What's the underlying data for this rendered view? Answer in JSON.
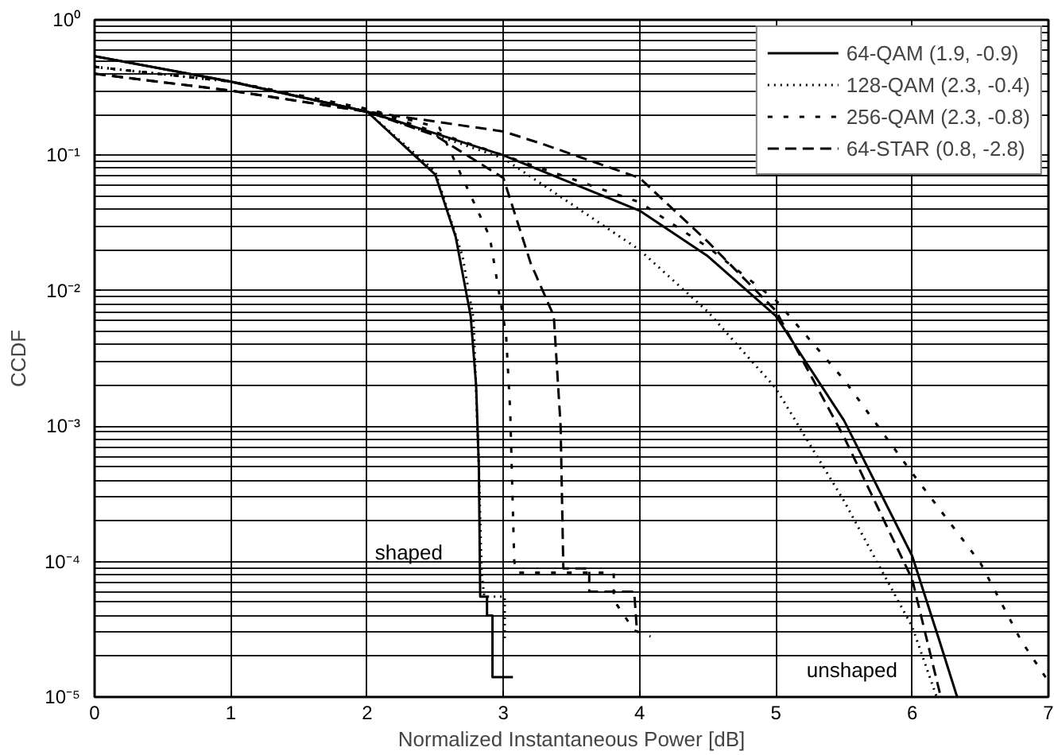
{
  "chart_data": {
    "type": "line",
    "xlabel": "Normalized Instantaneous Power [dB]",
    "ylabel": "CCDF",
    "log": "y",
    "grid": true,
    "legend": "top right",
    "xlim": [
      0,
      7
    ],
    "xticks": [
      0,
      1,
      2,
      3,
      4,
      5,
      6,
      7
    ],
    "ylim": [
      1e-05,
      1
    ],
    "yticks": [
      {
        "value": 1e-05,
        "label": "10⁻⁵"
      },
      {
        "value": 0.0001,
        "label": "10⁻⁴"
      },
      {
        "value": 0.001,
        "label": "10⁻³"
      },
      {
        "value": 0.01,
        "label": "10⁻²"
      },
      {
        "value": 0.1,
        "label": "10⁻¹"
      },
      {
        "value": 1,
        "label": "10⁰"
      }
    ],
    "annotations": [
      "shaped",
      "unshaped"
    ],
    "series": [
      {
        "name": "64-QAM (1.9, -0.9)",
        "color": "#000000",
        "line_style": "solid",
        "x": [
          0,
          1,
          2,
          3,
          4,
          4.5,
          5,
          5.5,
          6,
          6.2,
          6.33
        ],
        "values": [
          0.54,
          0.35,
          0.21,
          0.1,
          0.039,
          0.018,
          0.0065,
          0.0011,
          0.00011,
          2.6e-05,
          1e-05
        ]
      },
      {
        "name": "128-QAM (2.3, -0.4)",
        "color": "#000000",
        "line_style": "dotted",
        "x": [
          0,
          1,
          2,
          3,
          4,
          4.5,
          5,
          5.5,
          6,
          6.18
        ],
        "values": [
          0.45,
          0.35,
          0.21,
          0.095,
          0.02,
          0.007,
          0.0019,
          0.00028,
          3.3e-05,
          1e-05
        ]
      },
      {
        "name": "256-QAM (2.3, -0.8)",
        "color": "#000000",
        "line_style": "sparse dashed",
        "x": [
          0,
          1,
          2,
          3,
          4,
          4.5,
          5,
          5.5,
          6,
          6.5,
          6.8,
          7
        ],
        "values": [
          0.45,
          0.35,
          0.22,
          0.1,
          0.045,
          0.021,
          0.0085,
          0.0022,
          0.00045,
          9.8e-05,
          2.6e-05,
          1.3e-05
        ]
      },
      {
        "name": "64-STAR (0.8, -2.8)",
        "color": "#000000",
        "line_style": "dashed",
        "x": [
          0,
          1,
          2,
          3,
          3.3,
          4,
          4.5,
          5,
          5.5,
          6,
          6.21
        ],
        "values": [
          0.4,
          0.3,
          0.21,
          0.15,
          0.12,
          0.068,
          0.023,
          0.0071,
          0.00083,
          7.4e-05,
          1e-05
        ]
      },
      {
        "color": "#000000",
        "line_style": "solid",
        "x": [
          0,
          1,
          2,
          2.5,
          2.65,
          2.76,
          2.8,
          2.82,
          2.83,
          2.88,
          2.88,
          2.92,
          2.92,
          3.07
        ],
        "values": [
          0.54,
          0.35,
          0.21,
          0.072,
          0.025,
          0.0065,
          0.002,
          0.0005,
          5.5e-05,
          5.5e-05,
          4e-05,
          4e-05,
          1.4e-05,
          1.4e-05
        ]
      },
      {
        "color": "#000000",
        "line_style": "dotted",
        "x": [
          0,
          1,
          2,
          2.5,
          2.7,
          2.78,
          2.82,
          2.84,
          2.86,
          3.01,
          3.01
        ],
        "values": [
          0.45,
          0.35,
          0.21,
          0.076,
          0.018,
          0.0063,
          0.0005,
          8.3e-05,
          5.5e-05,
          5.5e-05,
          2.7e-05
        ]
      },
      {
        "color": "#000000",
        "line_style": "sparse dashed",
        "x": [
          0,
          1,
          2,
          2.53,
          2.9,
          3.02,
          3.05,
          3.08,
          3.1,
          3.81,
          3.81,
          3.96,
          4.08
        ],
        "values": [
          0.45,
          0.35,
          0.22,
          0.16,
          0.025,
          0.0047,
          0.0013,
          0.0001,
          8.3e-05,
          8.3e-05,
          5.2e-05,
          3.1e-05,
          2.8e-05
        ]
      },
      {
        "color": "#000000",
        "line_style": "dashed",
        "x": [
          0,
          1,
          2,
          2.5,
          3,
          3.2,
          3.37,
          3.42,
          3.44,
          3.63,
          3.63,
          3.96,
          3.98
        ],
        "values": [
          0.4,
          0.3,
          0.21,
          0.14,
          0.068,
          0.016,
          0.0065,
          0.001,
          8.9e-05,
          8.9e-05,
          6e-05,
          6e-05,
          3.1e-05
        ]
      }
    ]
  }
}
